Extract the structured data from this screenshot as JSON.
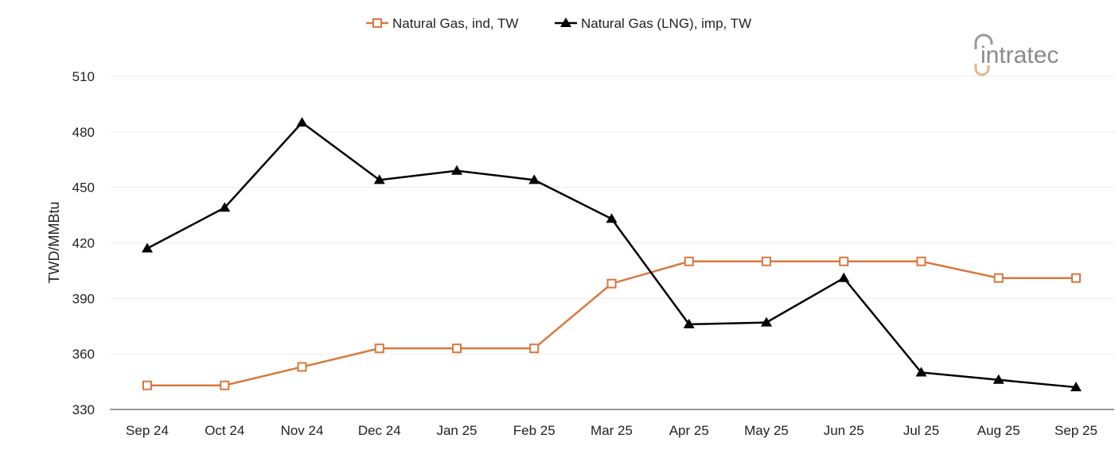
{
  "chart_data": {
    "type": "line",
    "ylabel": "TWD/MMBtu",
    "xlabel": "",
    "ylim": [
      330,
      510
    ],
    "yticks": [
      330,
      360,
      390,
      420,
      450,
      480,
      510
    ],
    "grid": true,
    "legend_position": "top-center",
    "categories": [
      "Sep 24",
      "Oct 24",
      "Nov 24",
      "Dec 24",
      "Jan 25",
      "Feb 25",
      "Mar 25",
      "Apr 25",
      "May 25",
      "Jun 25",
      "Jul 25",
      "Aug 25",
      "Sep 25"
    ],
    "series": [
      {
        "name": "Natural Gas, ind, TW",
        "color": "#d9783f",
        "marker": "square-open",
        "values": [
          343,
          343,
          353,
          363,
          363,
          363,
          398,
          410,
          410,
          410,
          410,
          401,
          401
        ]
      },
      {
        "name": "Natural Gas (LNG), imp, TW",
        "color": "#000000",
        "marker": "triangle",
        "values": [
          417,
          439,
          485,
          454,
          459,
          454,
          433,
          376,
          377,
          401,
          350,
          346,
          342
        ]
      }
    ]
  },
  "logo": {
    "text": "intratec",
    "color": "#8a8a8a",
    "accent": "#e3b58f"
  }
}
